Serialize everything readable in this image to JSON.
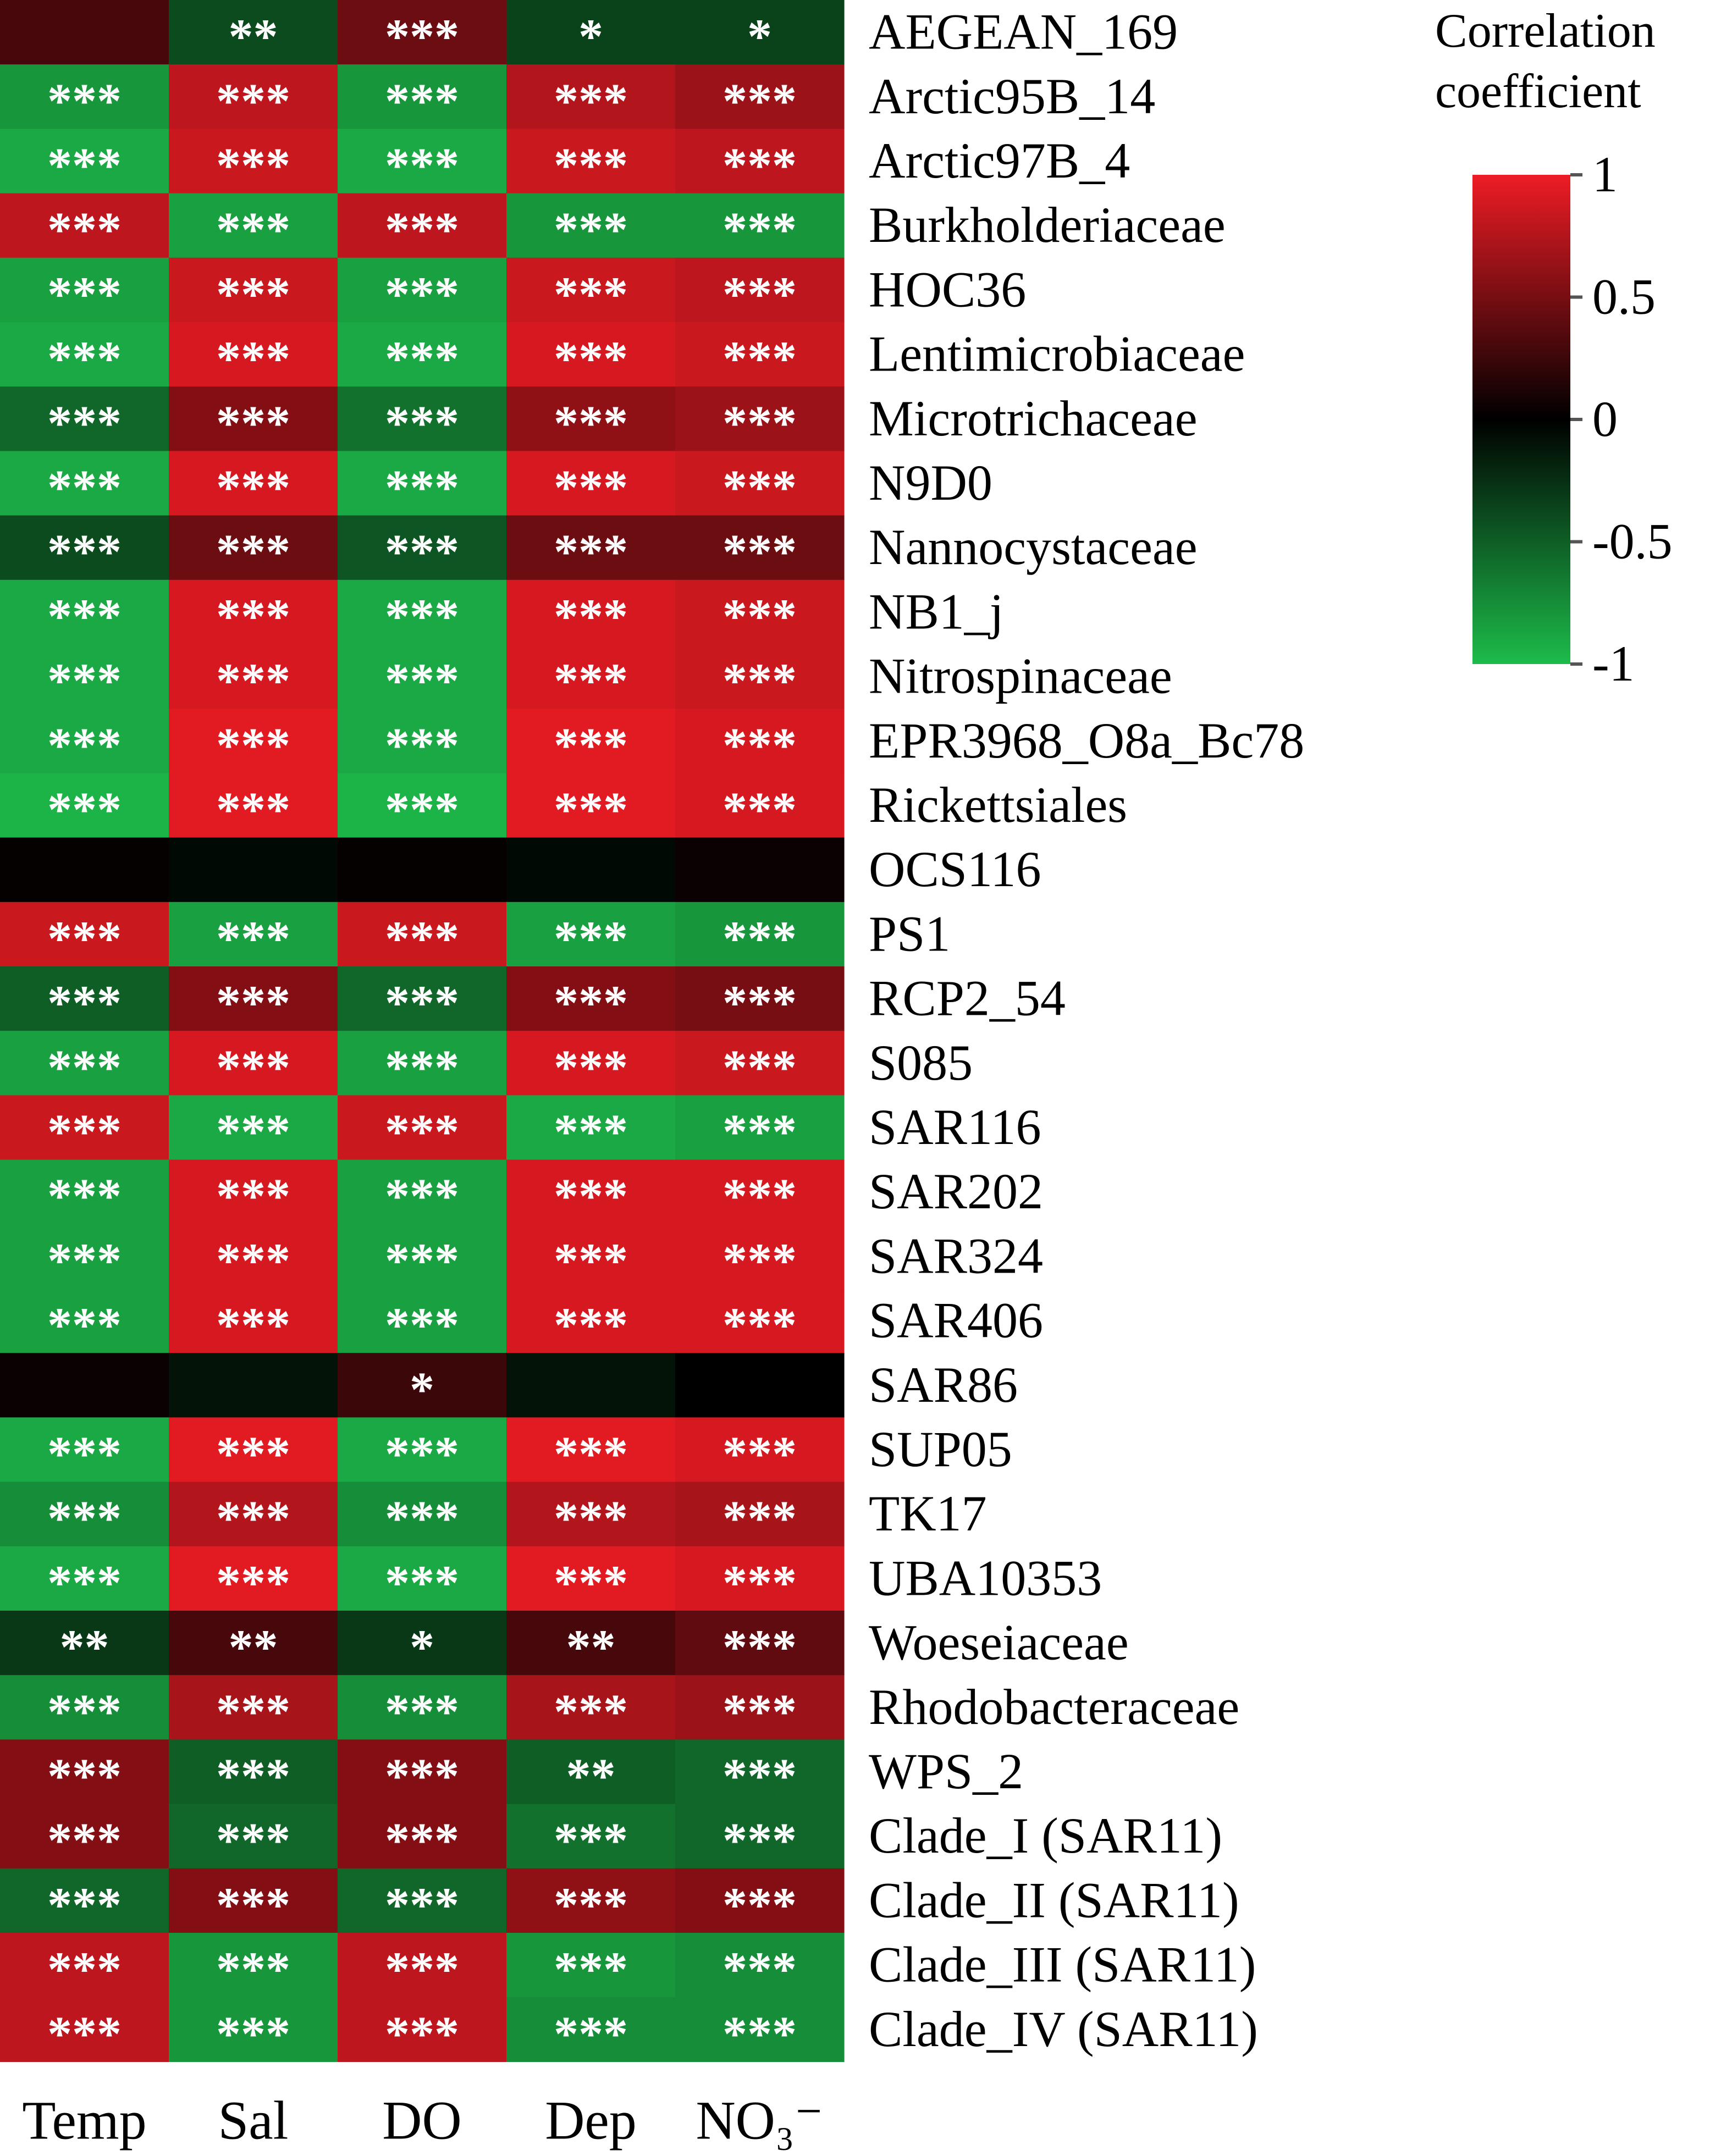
{
  "chart_data": {
    "type": "heatmap",
    "columns": [
      "Temp",
      "Sal",
      "DO",
      "Dep",
      "NO₃⁻"
    ],
    "rows": [
      {
        "label": "AEGEAN_169",
        "values": [
          0.3,
          -0.4,
          0.45,
          -0.35,
          -0.35
        ],
        "sig": [
          "",
          "**",
          "***",
          "*",
          "*"
        ]
      },
      {
        "label": "Arctic95B_14",
        "values": [
          -0.8,
          0.8,
          -0.8,
          0.75,
          0.65
        ],
        "sig": [
          "***",
          "***",
          "***",
          "***",
          "***"
        ]
      },
      {
        "label": "Arctic97B_4",
        "values": [
          -0.9,
          0.85,
          -0.9,
          0.85,
          0.8
        ],
        "sig": [
          "***",
          "***",
          "***",
          "***",
          "***"
        ]
      },
      {
        "label": "Burkholderiaceae",
        "values": [
          0.8,
          -0.85,
          0.8,
          -0.8,
          -0.8
        ],
        "sig": [
          "***",
          "***",
          "***",
          "***",
          "***"
        ]
      },
      {
        "label": "HOC36",
        "values": [
          -0.85,
          0.85,
          -0.85,
          0.85,
          0.8
        ],
        "sig": [
          "***",
          "***",
          "***",
          "***",
          "***"
        ]
      },
      {
        "label": "Lentimicrobiaceae",
        "values": [
          -0.9,
          0.9,
          -0.9,
          0.9,
          0.85
        ],
        "sig": [
          "***",
          "***",
          "***",
          "***",
          "***"
        ]
      },
      {
        "label": "Microtrichaceae",
        "values": [
          -0.55,
          0.55,
          -0.6,
          0.6,
          0.65
        ],
        "sig": [
          "***",
          "***",
          "***",
          "***",
          "***"
        ]
      },
      {
        "label": "N9D0",
        "values": [
          -0.9,
          0.9,
          -0.9,
          0.9,
          0.85
        ],
        "sig": [
          "***",
          "***",
          "***",
          "***",
          "***"
        ]
      },
      {
        "label": "Nannocystaceae",
        "values": [
          -0.4,
          0.45,
          -0.45,
          0.45,
          0.45
        ],
        "sig": [
          "***",
          "***",
          "***",
          "***",
          "***"
        ]
      },
      {
        "label": "NB1_j",
        "values": [
          -0.9,
          0.9,
          -0.9,
          0.9,
          0.85
        ],
        "sig": [
          "***",
          "***",
          "***",
          "***",
          "***"
        ]
      },
      {
        "label": "Nitrospinaceae",
        "values": [
          -0.9,
          0.9,
          -0.9,
          0.9,
          0.85
        ],
        "sig": [
          "***",
          "***",
          "***",
          "***",
          "***"
        ]
      },
      {
        "label": "EPR3968_O8a_Bc78",
        "values": [
          -0.9,
          0.95,
          -0.9,
          0.95,
          0.9
        ],
        "sig": [
          "***",
          "***",
          "***",
          "***",
          "***"
        ]
      },
      {
        "label": "Rickettsiales",
        "values": [
          -0.95,
          0.95,
          -0.95,
          0.95,
          0.9
        ],
        "sig": [
          "***",
          "***",
          "***",
          "***",
          "***"
        ]
      },
      {
        "label": "OCS116",
        "values": [
          0.02,
          -0.05,
          0.02,
          -0.05,
          0.05
        ],
        "sig": [
          "",
          "",
          "",
          "",
          ""
        ]
      },
      {
        "label": "PS1",
        "values": [
          0.85,
          -0.85,
          0.85,
          -0.85,
          -0.8
        ],
        "sig": [
          "***",
          "***",
          "***",
          "***",
          "***"
        ]
      },
      {
        "label": "RCP2_54",
        "values": [
          -0.5,
          0.55,
          -0.55,
          0.55,
          0.5
        ],
        "sig": [
          "***",
          "***",
          "***",
          "***",
          "***"
        ]
      },
      {
        "label": "S085",
        "values": [
          -0.85,
          0.9,
          -0.85,
          0.9,
          0.85
        ],
        "sig": [
          "***",
          "***",
          "***",
          "***",
          "***"
        ]
      },
      {
        "label": "SAR116",
        "values": [
          0.85,
          -0.9,
          0.85,
          -0.9,
          -0.85
        ],
        "sig": [
          "***",
          "***",
          "***",
          "***",
          "***"
        ]
      },
      {
        "label": "SAR202",
        "values": [
          -0.85,
          0.9,
          -0.85,
          0.9,
          0.9
        ],
        "sig": [
          "***",
          "***",
          "***",
          "***",
          "***"
        ]
      },
      {
        "label": "SAR324",
        "values": [
          -0.85,
          0.9,
          -0.85,
          0.9,
          0.9
        ],
        "sig": [
          "***",
          "***",
          "***",
          "***",
          "***"
        ]
      },
      {
        "label": "SAR406",
        "values": [
          -0.85,
          0.9,
          -0.85,
          0.9,
          0.9
        ],
        "sig": [
          "***",
          "***",
          "***",
          "***",
          "***"
        ]
      },
      {
        "label": "SAR86",
        "values": [
          0.05,
          -0.1,
          0.25,
          -0.1,
          0.0
        ],
        "sig": [
          "",
          "",
          "*",
          "",
          ""
        ]
      },
      {
        "label": "SUP05",
        "values": [
          -0.9,
          0.95,
          -0.9,
          0.95,
          0.9
        ],
        "sig": [
          "***",
          "***",
          "***",
          "***",
          "***"
        ]
      },
      {
        "label": "TK17",
        "values": [
          -0.75,
          0.75,
          -0.75,
          0.75,
          0.7
        ],
        "sig": [
          "***",
          "***",
          "***",
          "***",
          "***"
        ]
      },
      {
        "label": "UBA10353",
        "values": [
          -0.9,
          0.95,
          -0.9,
          0.95,
          0.9
        ],
        "sig": [
          "***",
          "***",
          "***",
          "***",
          "***"
        ]
      },
      {
        "label": "Woeseiaceae",
        "values": [
          -0.3,
          0.3,
          -0.3,
          0.3,
          0.4
        ],
        "sig": [
          "**",
          "**",
          "*",
          "**",
          "***"
        ]
      },
      {
        "label": "Rhodobacteraceae",
        "values": [
          -0.75,
          0.7,
          -0.75,
          0.7,
          0.65
        ],
        "sig": [
          "***",
          "***",
          "***",
          "***",
          "***"
        ]
      },
      {
        "label": "WPS_2",
        "values": [
          0.55,
          -0.5,
          0.55,
          -0.5,
          -0.55
        ],
        "sig": [
          "***",
          "***",
          "***",
          "**",
          "***"
        ]
      },
      {
        "label": "Clade_I (SAR11)",
        "values": [
          0.55,
          -0.55,
          0.55,
          -0.6,
          -0.55
        ],
        "sig": [
          "***",
          "***",
          "***",
          "***",
          "***"
        ]
      },
      {
        "label": "Clade_II (SAR11)",
        "values": [
          -0.55,
          0.55,
          -0.55,
          0.6,
          0.55
        ],
        "sig": [
          "***",
          "***",
          "***",
          "***",
          "***"
        ]
      },
      {
        "label": "Clade_III (SAR11)",
        "values": [
          0.8,
          -0.8,
          0.8,
          -0.8,
          -0.75
        ],
        "sig": [
          "***",
          "***",
          "***",
          "***",
          "***"
        ]
      },
      {
        "label": "Clade_IV (SAR11)",
        "values": [
          0.8,
          -0.8,
          0.8,
          -0.75,
          -0.75
        ],
        "sig": [
          "***",
          "***",
          "***",
          "***",
          "***"
        ]
      }
    ],
    "legend": {
      "title_line1": "Correlation",
      "title_line2": "coefficient",
      "ticks": [
        {
          "value": 1,
          "label": "1"
        },
        {
          "value": 0.5,
          "label": "0.5"
        },
        {
          "value": 0,
          "label": "0"
        },
        {
          "value": -0.5,
          "label": "-0.5"
        },
        {
          "value": -1,
          "label": "-1"
        }
      ],
      "range": [
        -1,
        1
      ],
      "placement": "top-right"
    },
    "colors": {
      "positive": "#ee1c25",
      "zero": "#000000",
      "negative": "#1dbc4b",
      "sig_text": "#ffffff",
      "label_text": "#000000"
    }
  }
}
